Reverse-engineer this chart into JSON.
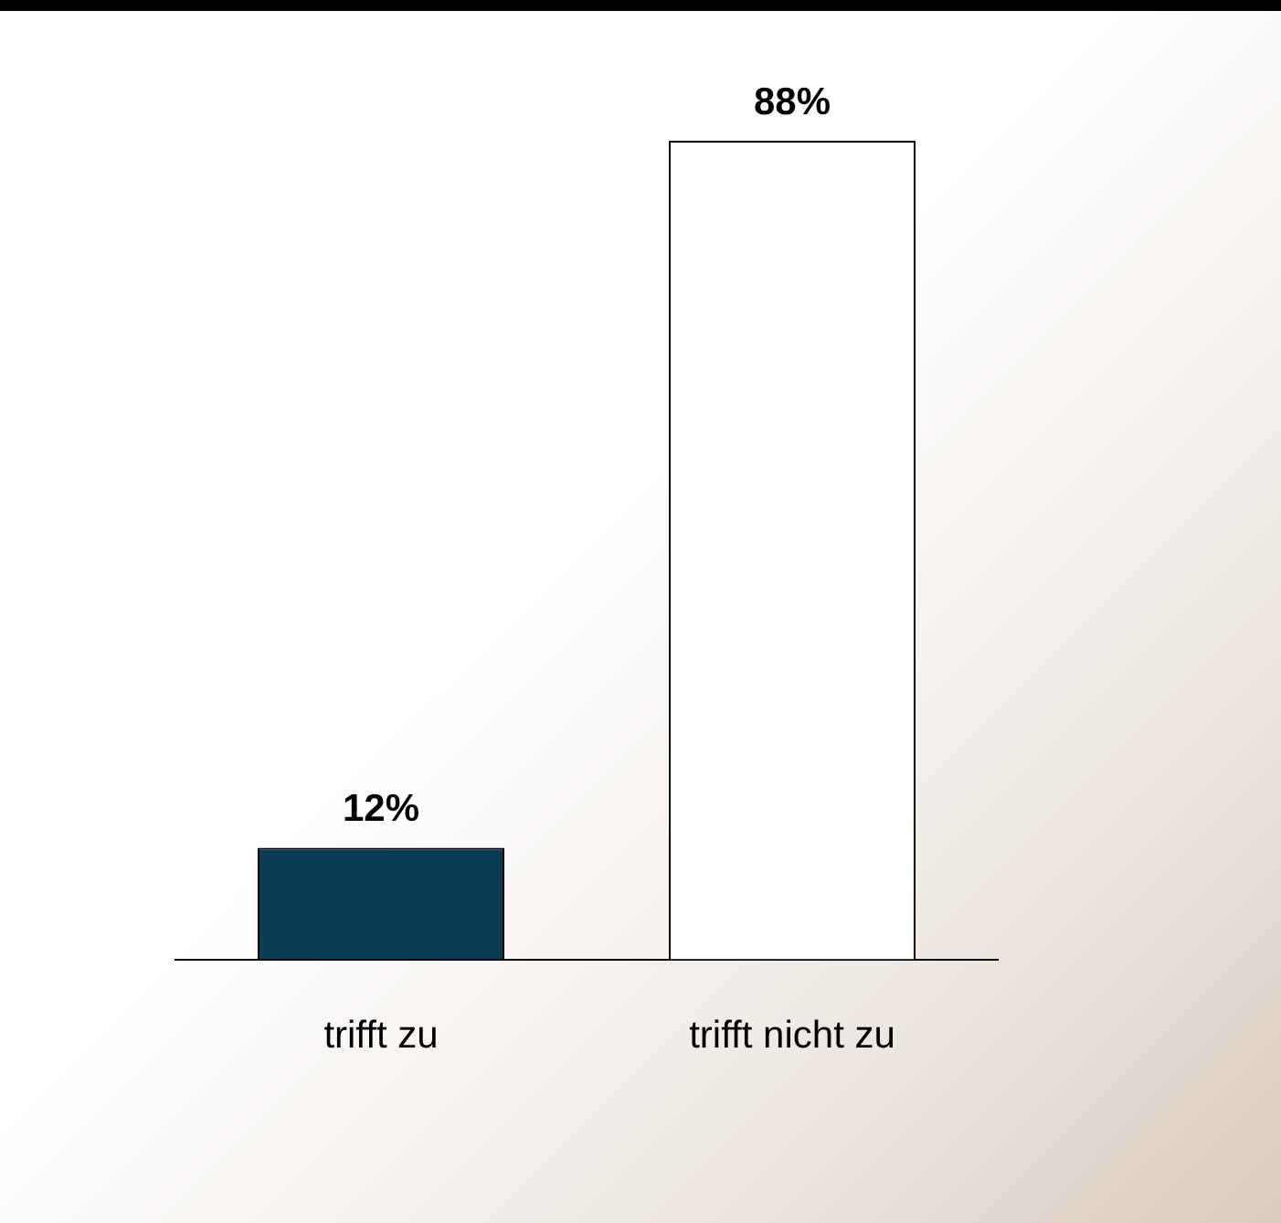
{
  "chart_data": {
    "type": "bar",
    "relative": false,
    "categories": [
      "trifft zu",
      "trifft nicht zu"
    ],
    "values": [
      12,
      88
    ],
    "colors": [
      "#0b3c54",
      "#ffffff"
    ],
    "value_labels": [
      "12%",
      "88%"
    ]
  }
}
